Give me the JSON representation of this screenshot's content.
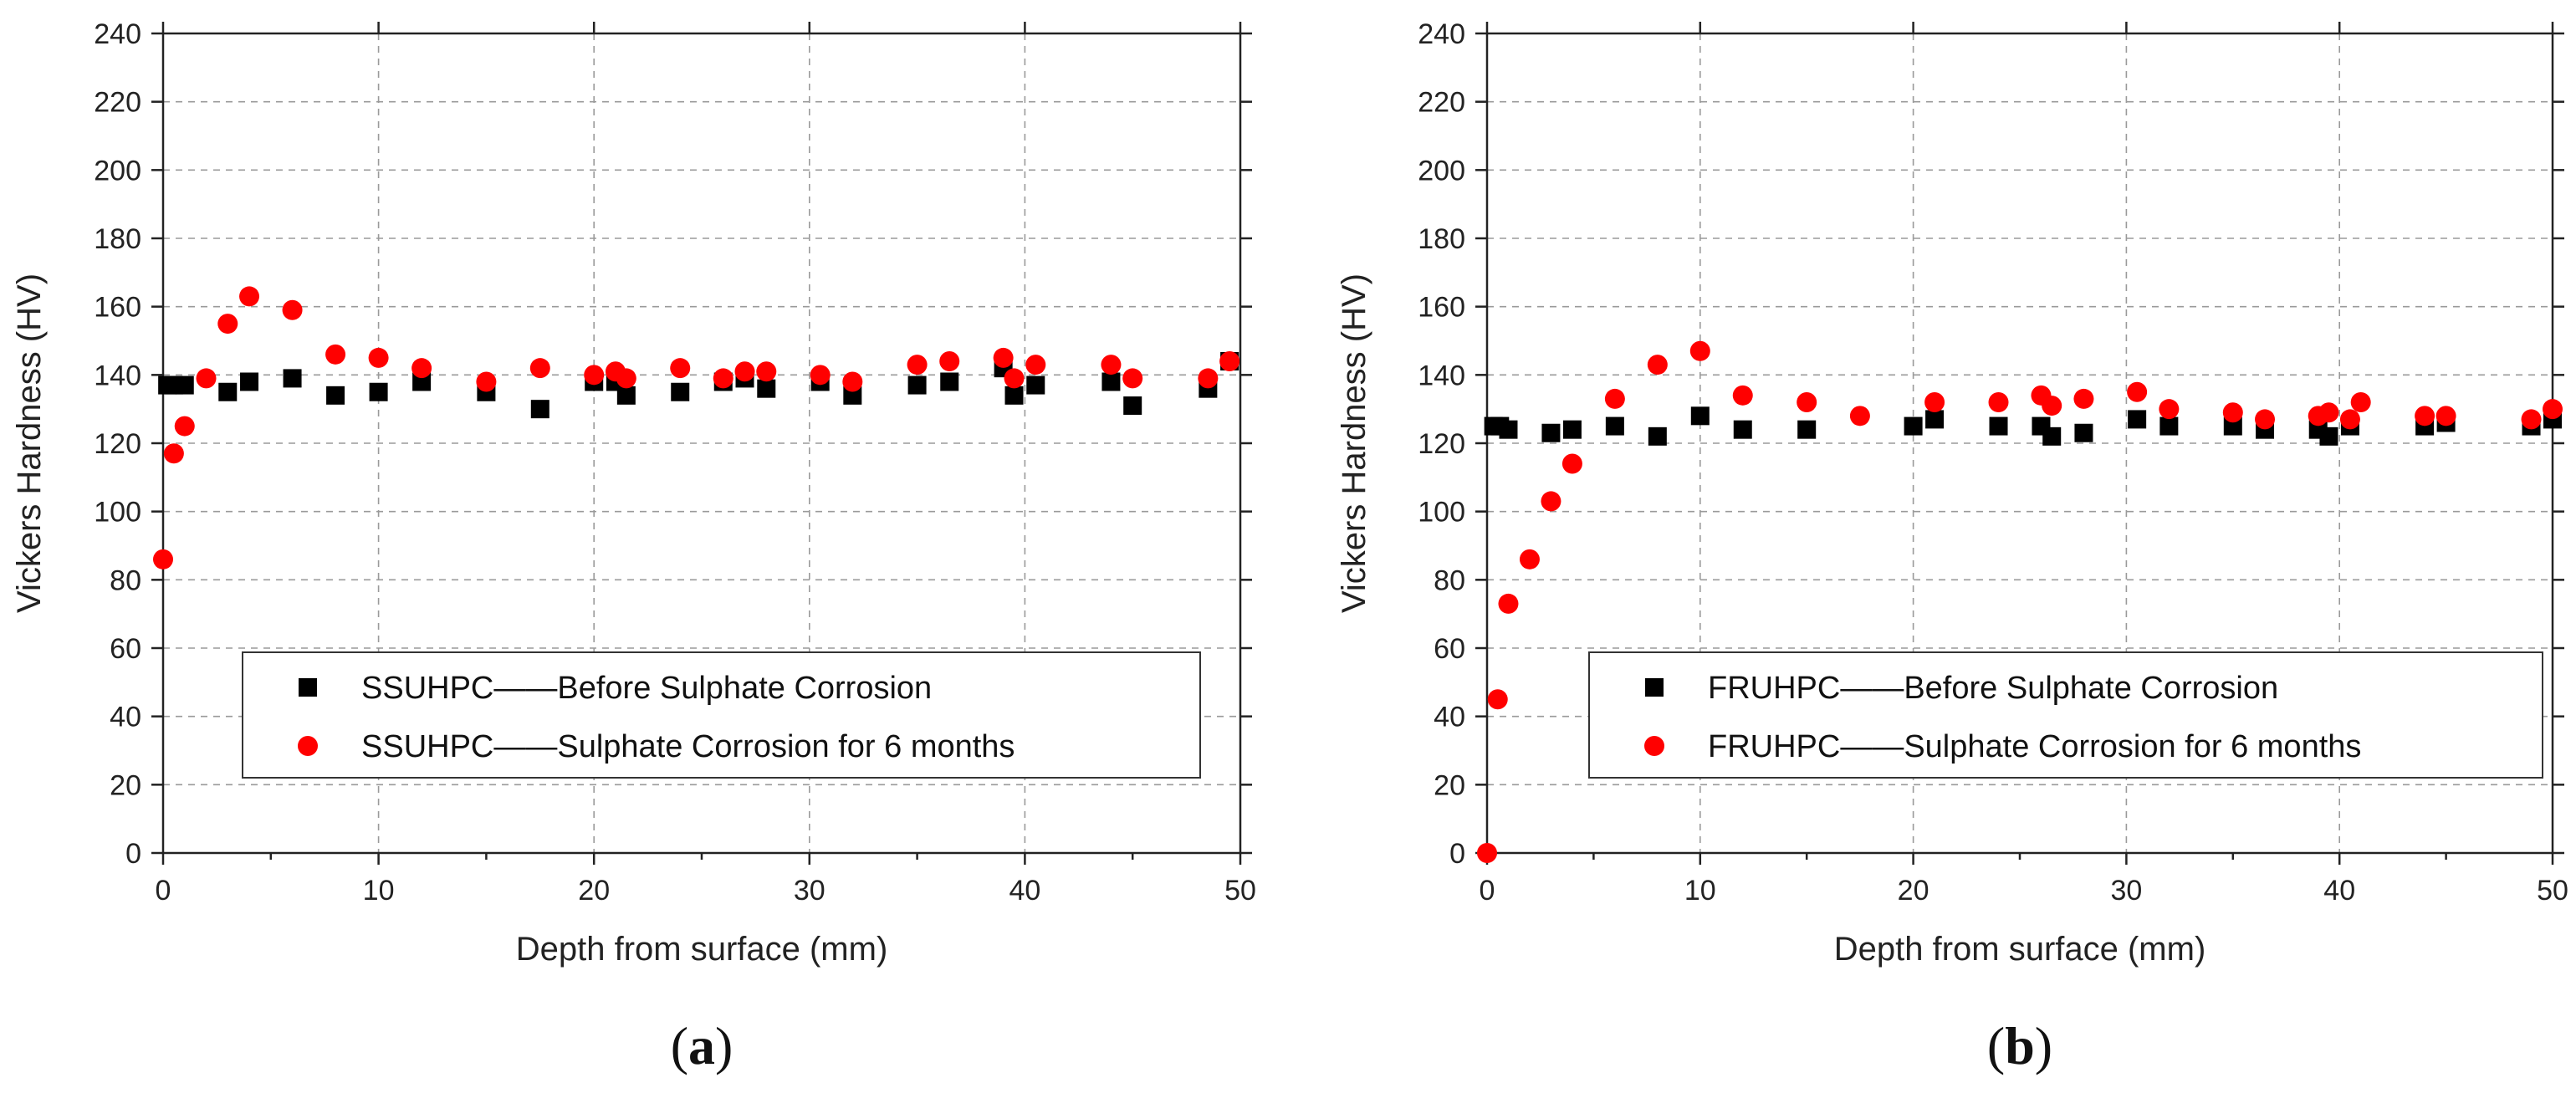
{
  "chart_data": [
    {
      "type": "scatter",
      "panel": "a",
      "caption_letter": "a",
      "xlabel": "Depth from surface (mm)",
      "ylabel": "Vickers Hardness (HV)",
      "xlim": [
        0,
        50
      ],
      "ylim": [
        0,
        240
      ],
      "xticks": [
        0,
        10,
        20,
        30,
        40,
        50
      ],
      "yticks": [
        0,
        20,
        40,
        60,
        80,
        100,
        120,
        140,
        160,
        180,
        200,
        220,
        240
      ],
      "grid": true,
      "legend_position": "lower-center",
      "series": [
        {
          "name": "SSUHPC——Before Sulphate Corrosion",
          "marker": "square",
          "color": "#000000",
          "points": [
            [
              0.2,
              137
            ],
            [
              0.5,
              137
            ],
            [
              1,
              137
            ],
            [
              3,
              135
            ],
            [
              4,
              138
            ],
            [
              6,
              139
            ],
            [
              8,
              134
            ],
            [
              10,
              135
            ],
            [
              12,
              138
            ],
            [
              15,
              135
            ],
            [
              17.5,
              130
            ],
            [
              20,
              138
            ],
            [
              21,
              138
            ],
            [
              21.5,
              134
            ],
            [
              24,
              135
            ],
            [
              26,
              138
            ],
            [
              27,
              139
            ],
            [
              28,
              136
            ],
            [
              30.5,
              138
            ],
            [
              32,
              134
            ],
            [
              35,
              137
            ],
            [
              36.5,
              138
            ],
            [
              39,
              142
            ],
            [
              39.5,
              134
            ],
            [
              40.5,
              137
            ],
            [
              44,
              138
            ],
            [
              45,
              131
            ],
            [
              48.5,
              136
            ],
            [
              49.5,
              144
            ]
          ]
        },
        {
          "name": "SSUHPC——Sulphate Corrosion for 6 months",
          "marker": "circle",
          "color": "#ff0000",
          "points": [
            [
              0,
              86
            ],
            [
              0.5,
              117
            ],
            [
              1,
              125
            ],
            [
              2,
              139
            ],
            [
              3,
              155
            ],
            [
              4,
              163
            ],
            [
              6,
              159
            ],
            [
              8,
              146
            ],
            [
              10,
              145
            ],
            [
              12,
              142
            ],
            [
              15,
              138
            ],
            [
              17.5,
              142
            ],
            [
              20,
              140
            ],
            [
              21,
              141
            ],
            [
              21.5,
              139
            ],
            [
              24,
              142
            ],
            [
              26,
              139
            ],
            [
              27,
              141
            ],
            [
              28,
              141
            ],
            [
              30.5,
              140
            ],
            [
              32,
              138
            ],
            [
              35,
              143
            ],
            [
              36.5,
              144
            ],
            [
              39,
              145
            ],
            [
              39.5,
              139
            ],
            [
              40.5,
              143
            ],
            [
              44,
              143
            ],
            [
              45,
              139
            ],
            [
              48.5,
              139
            ],
            [
              49.5,
              144
            ]
          ]
        }
      ]
    },
    {
      "type": "scatter",
      "panel": "b",
      "caption_letter": "b",
      "xlabel": "Depth from surface (mm)",
      "ylabel": "Vickers Hardness (HV)",
      "xlim": [
        0,
        50
      ],
      "ylim": [
        0,
        240
      ],
      "xticks": [
        0,
        10,
        20,
        30,
        40,
        50
      ],
      "yticks": [
        0,
        20,
        40,
        60,
        80,
        100,
        120,
        140,
        160,
        180,
        200,
        220,
        240
      ],
      "grid": true,
      "legend_position": "lower-center",
      "series": [
        {
          "name": "FRUHPC——Before Sulphate Corrosion",
          "marker": "square",
          "color": "#000000",
          "points": [
            [
              0.3,
              125
            ],
            [
              0.6,
              125
            ],
            [
              1,
              124
            ],
            [
              3,
              123
            ],
            [
              4,
              124
            ],
            [
              6,
              125
            ],
            [
              8,
              122
            ],
            [
              10,
              128
            ],
            [
              12,
              124
            ],
            [
              15,
              124
            ],
            [
              20,
              125
            ],
            [
              21,
              127
            ],
            [
              24,
              125
            ],
            [
              26,
              125
            ],
            [
              26.5,
              122
            ],
            [
              28,
              123
            ],
            [
              30.5,
              127
            ],
            [
              32,
              125
            ],
            [
              35,
              125
            ],
            [
              36.5,
              124
            ],
            [
              39,
              124
            ],
            [
              39.5,
              122
            ],
            [
              40.5,
              125
            ],
            [
              44,
              125
            ],
            [
              45,
              126
            ],
            [
              49,
              125
            ],
            [
              50,
              127
            ]
          ]
        },
        {
          "name": "FRUHPC——Sulphate Corrosion for 6 months",
          "marker": "circle",
          "color": "#ff0000",
          "points": [
            [
              0,
              0
            ],
            [
              0.5,
              45
            ],
            [
              1,
              73
            ],
            [
              2,
              86
            ],
            [
              3,
              103
            ],
            [
              4,
              114
            ],
            [
              6,
              133
            ],
            [
              8,
              143
            ],
            [
              10,
              147
            ],
            [
              12,
              134
            ],
            [
              15,
              132
            ],
            [
              17.5,
              128
            ],
            [
              21,
              132
            ],
            [
              24,
              132
            ],
            [
              26,
              134
            ],
            [
              26.5,
              131
            ],
            [
              28,
              133
            ],
            [
              30.5,
              135
            ],
            [
              32,
              130
            ],
            [
              35,
              129
            ],
            [
              36.5,
              127
            ],
            [
              39,
              128
            ],
            [
              39.5,
              129
            ],
            [
              40.5,
              127
            ],
            [
              41,
              132
            ],
            [
              44,
              128
            ],
            [
              45,
              128
            ],
            [
              49,
              127
            ],
            [
              50,
              130
            ]
          ]
        }
      ]
    }
  ]
}
